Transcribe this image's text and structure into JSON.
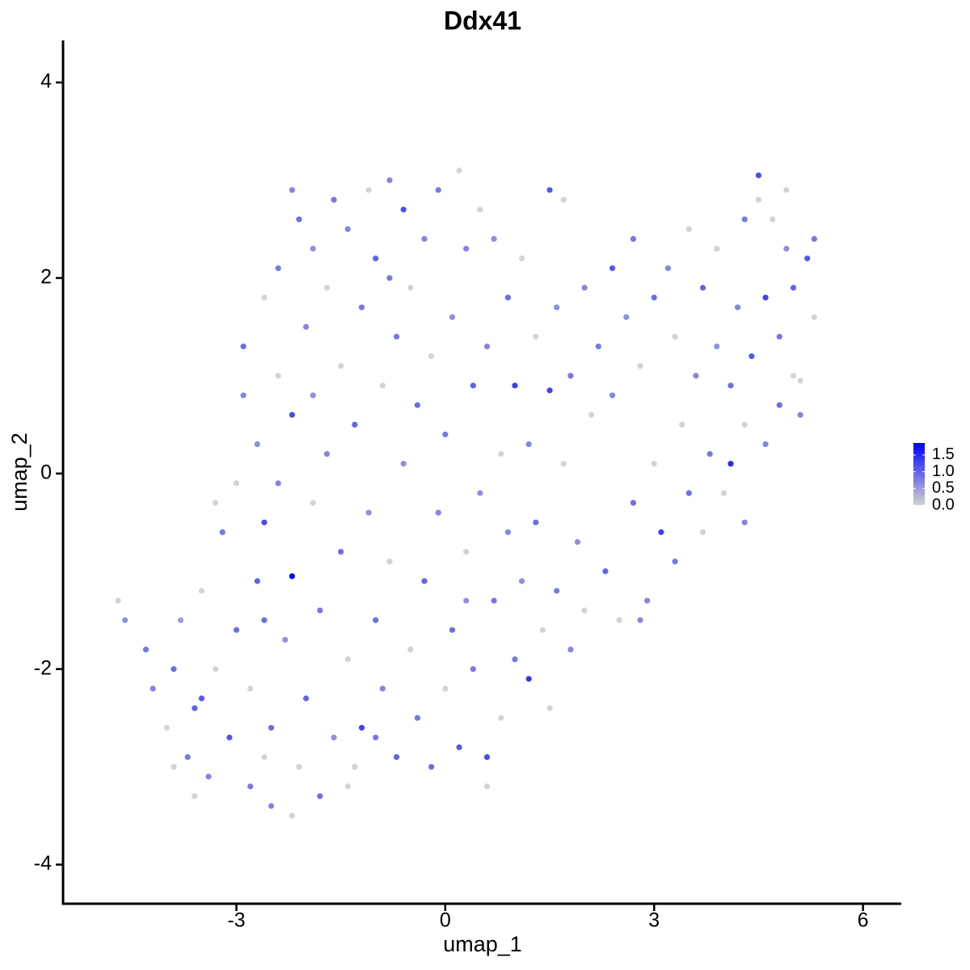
{
  "chart_data": {
    "type": "scatter",
    "title": "Ddx41",
    "x_label": "umap_1",
    "y_label": "umap_2",
    "xlim": [
      -5.49,
      6.55
    ],
    "ylim": [
      -4.4,
      4.43
    ],
    "xticks": [
      -3,
      0,
      3,
      6
    ],
    "yticks": [
      -4,
      -2,
      0,
      2,
      4
    ],
    "low_color": "#d3d3d3",
    "high_color": "#0000ff",
    "colorlim": [
      0,
      1.86
    ],
    "colorticks": [
      {
        "value": 0,
        "label": "0.0"
      },
      {
        "value": 0.5,
        "label": "0.5"
      },
      {
        "value": 1,
        "label": "1.0"
      },
      {
        "value": 1.5,
        "label": "1.5"
      }
    ],
    "x": [
      -4.7,
      -4.6,
      -4.3,
      -4.2,
      -4.0,
      -3.9,
      -3.8,
      -3.7,
      -3.6,
      -3.5,
      -3.4,
      -3.3,
      -3.2,
      -3.1,
      -3.0,
      -3.0,
      -2.9,
      -2.9,
      -2.8,
      -2.8,
      -2.7,
      -2.7,
      -2.6,
      -2.6,
      -2.5,
      -2.5,
      -2.4,
      -2.4,
      -2.3,
      -2.2,
      -2.2,
      -2.1,
      -2.1,
      -2.0,
      -2.0,
      -1.9,
      -1.9,
      -1.8,
      -1.8,
      -1.7,
      -1.7,
      -1.6,
      -1.6,
      -1.5,
      -1.5,
      -1.4,
      -1.4,
      -1.3,
      -1.3,
      -1.2,
      -1.2,
      -1.1,
      -1.1,
      -1.0,
      -1.0,
      -0.9,
      -0.9,
      -0.8,
      -0.8,
      -0.7,
      -0.7,
      -0.6,
      -0.6,
      -0.5,
      -0.5,
      -0.4,
      -0.4,
      -0.3,
      -0.3,
      -0.2,
      -0.2,
      -0.1,
      -0.1,
      0.0,
      0.0,
      0.1,
      0.1,
      0.2,
      0.2,
      0.3,
      0.3,
      0.4,
      0.4,
      0.5,
      0.5,
      0.6,
      0.6,
      0.7,
      0.7,
      0.8,
      0.8,
      0.9,
      0.9,
      1.0,
      1.0,
      1.1,
      1.1,
      1.2,
      1.2,
      1.3,
      1.3,
      1.4,
      1.5,
      1.5,
      1.6,
      1.6,
      1.7,
      1.8,
      1.8,
      1.9,
      2.0,
      2.0,
      2.1,
      2.2,
      2.3,
      2.4,
      2.4,
      2.5,
      2.6,
      2.7,
      2.7,
      2.8,
      2.9,
      3.0,
      3.0,
      3.1,
      3.2,
      3.3,
      3.3,
      3.4,
      3.5,
      3.5,
      3.6,
      3.7,
      3.8,
      3.9,
      3.9,
      4.0,
      4.1,
      4.1,
      4.2,
      4.3,
      4.3,
      4.4,
      4.5,
      4.5,
      4.6,
      4.6,
      4.7,
      4.8,
      4.8,
      4.9,
      5.0,
      5.0,
      5.1,
      5.2,
      5.3,
      5.3,
      5.1,
      4.9,
      -3.9,
      -3.6,
      -2.6,
      -2.2,
      -1.4,
      -3.3,
      -2.4,
      -1.9,
      -0.8,
      0.3,
      -2.6,
      -3.5,
      -1.0,
      0.6,
      1.5,
      -2.2,
      1.7,
      2.8,
      3.7,
      4.3
    ],
    "y": [
      -1.3,
      -1.5,
      -1.8,
      -2.2,
      -2.6,
      -2.0,
      -1.5,
      -2.9,
      -2.4,
      -1.2,
      -3.1,
      -2.0,
      -0.6,
      -2.7,
      -1.6,
      -0.1,
      0.8,
      1.3,
      -3.2,
      -2.2,
      -1.1,
      0.3,
      1.8,
      -0.5,
      -2.6,
      -3.4,
      2.1,
      1.0,
      -1.7,
      -1.05,
      0.6,
      2.6,
      -3.0,
      -2.3,
      1.5,
      -0.3,
      2.3,
      -1.4,
      -3.3,
      0.2,
      1.9,
      2.8,
      -2.7,
      -0.8,
      1.1,
      2.5,
      -1.9,
      -3.0,
      0.5,
      -2.6,
      1.7,
      2.9,
      -0.4,
      -1.5,
      2.2,
      0.9,
      -2.2,
      3.0,
      -0.9,
      1.4,
      -2.9,
      2.7,
      0.1,
      -1.8,
      1.9,
      -2.5,
      0.7,
      2.4,
      -1.1,
      -3.0,
      1.2,
      -0.4,
      2.9,
      -2.2,
      0.4,
      1.6,
      -1.6,
      3.1,
      -2.8,
      -0.8,
      2.3,
      0.9,
      -2.0,
      2.7,
      -0.2,
      -2.9,
      1.3,
      -1.3,
      2.4,
      0.2,
      -2.5,
      1.8,
      -0.6,
      0.9,
      -1.9,
      2.2,
      -1.1,
      -2.1,
      0.3,
      1.4,
      -0.5,
      -1.6,
      0.85,
      2.9,
      -1.2,
      1.7,
      0.1,
      -1.8,
      1.0,
      -0.7,
      1.9,
      -1.4,
      0.6,
      1.3,
      -1.0,
      0.8,
      2.1,
      -1.5,
      1.6,
      -0.3,
      2.4,
      1.1,
      -1.3,
      1.8,
      0.1,
      -0.6,
      2.1,
      1.4,
      -0.9,
      0.5,
      2.5,
      -0.2,
      1.0,
      1.9,
      0.2,
      2.3,
      1.3,
      -0.2,
      0.9,
      0.1,
      1.7,
      2.6,
      0.5,
      1.2,
      3.05,
      2.8,
      0.3,
      1.8,
      2.6,
      0.7,
      1.4,
      2.3,
      1.0,
      1.9,
      0.6,
      2.2,
      2.4,
      1.6,
      0.95,
      2.9,
      -3.0,
      -3.3,
      -2.9,
      -3.5,
      -3.2,
      -0.3,
      -0.1,
      0.8,
      2.0,
      -1.3,
      -1.5,
      -2.3,
      -2.7,
      -3.2,
      -2.4,
      2.9,
      2.8,
      -1.5,
      -0.6,
      -0.5
    ],
    "expression": [
      0,
      0.6,
      0.8,
      0.7,
      0,
      0.9,
      0.5,
      0.8,
      1.0,
      0,
      0.7,
      0,
      0.8,
      1.1,
      0.9,
      0,
      0.7,
      0.9,
      0.8,
      0,
      1.0,
      0.6,
      0,
      1.2,
      0.9,
      0.7,
      0.8,
      0,
      0.6,
      1.8,
      1.2,
      0.9,
      0,
      1.0,
      0.7,
      0,
      0.6,
      0.8,
      0.9,
      0.7,
      0,
      0.8,
      0.6,
      0.9,
      0,
      0.7,
      0,
      0,
      1.0,
      1.3,
      0.8,
      0,
      0.6,
      0.9,
      1.0,
      0,
      0.7,
      0.7,
      0,
      0.8,
      1.0,
      1.2,
      0.6,
      0,
      0,
      0.8,
      0.9,
      0.7,
      1.0,
      0.9,
      0,
      0.7,
      0.8,
      0,
      0.8,
      0.6,
      0.9,
      0,
      1.1,
      0,
      0.7,
      1.0,
      0.8,
      0,
      0.6,
      1.2,
      0.7,
      0.8,
      0.6,
      0,
      0,
      0.9,
      0.7,
      1.3,
      0.8,
      0,
      0.6,
      1.4,
      0.7,
      0,
      0.9,
      0,
      1.3,
      1.1,
      0.8,
      0.6,
      0,
      0.7,
      0.8,
      0.6,
      0.7,
      0,
      0,
      0.8,
      1.0,
      0.7,
      1.1,
      0,
      0.6,
      0.9,
      0.8,
      0,
      0.7,
      0.9,
      0,
      1.3,
      0.7,
      0,
      0.8,
      0,
      0,
      0.9,
      0.7,
      1.0,
      0.8,
      0,
      0.6,
      0,
      0.9,
      1.5,
      0.7,
      0.8,
      0,
      1.1,
      1.2,
      0,
      0.7,
      1.3,
      0,
      0.9,
      0.8,
      0.6,
      0,
      1.0,
      0.7,
      1.1,
      0.8,
      0,
      0,
      0,
      0,
      0,
      0,
      0,
      0,
      0,
      0.7,
      0.6,
      0.8,
      0.6,
      0.9,
      1.1,
      0.8,
      0,
      0,
      0.7,
      0,
      0.7,
      0,
      0.7
    ]
  }
}
